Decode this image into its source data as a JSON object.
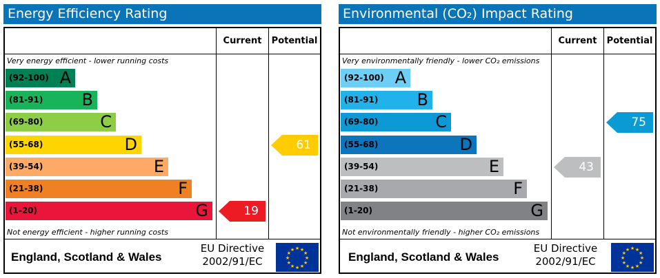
{
  "energy": {
    "title": "Energy Efficiency Rating",
    "col_current": "Current",
    "col_potential": "Potential",
    "top_note": "Very energy efficient - lower running costs",
    "bottom_note": "Not energy efficient - higher running costs",
    "region": "England, Scotland & Wales",
    "directive_line1": "EU Directive",
    "directive_line2": "2002/91/EC",
    "current": 19,
    "potential": 61,
    "current_color": "#ed1c24",
    "potential_color": "#ffcc00",
    "header_color": "#0a74b8"
  },
  "environmental": {
    "title": "Environmental (CO₂) Impact Rating",
    "col_current": "Current",
    "col_potential": "Potential",
    "top_note": "Very environmentally friendly - lower CO₂ emissions",
    "bottom_note": "Not environmentally friendly - higher CO₂ emissions",
    "region": "England, Scotland & Wales",
    "directive_line1": "EU Directive",
    "directive_line2": "2002/91/EC",
    "current": 43,
    "potential": 75,
    "current_color": "#bcbec0",
    "potential_color": "#0a9bd5",
    "header_color": "#0a74b8"
  },
  "chart_data": [
    {
      "type": "bar",
      "title": "Energy Efficiency Rating",
      "categories": [
        "(92-100) A",
        "(81-91) B",
        "(69-80) C",
        "(55-68) D",
        "(39-54) E",
        "(21-38) F",
        "(1-20) G"
      ],
      "bands": [
        {
          "range": "(92-100)",
          "letter": "A",
          "color": "#008054"
        },
        {
          "range": "(81-91)",
          "letter": "B",
          "color": "#19b459"
        },
        {
          "range": "(69-80)",
          "letter": "C",
          "color": "#8dce46"
        },
        {
          "range": "(55-68)",
          "letter": "D",
          "color": "#ffd500"
        },
        {
          "range": "(39-54)",
          "letter": "E",
          "color": "#fcaa65"
        },
        {
          "range": "(21-38)",
          "letter": "F",
          "color": "#ef8023"
        },
        {
          "range": "(1-20)",
          "letter": "G",
          "color": "#e9153b"
        }
      ],
      "current": 19,
      "potential": 61
    },
    {
      "type": "bar",
      "title": "Environmental (CO₂) Impact Rating",
      "categories": [
        "(92-100) A",
        "(81-91) B",
        "(69-80) C",
        "(55-68) D",
        "(39-54) E",
        "(21-38) F",
        "(1-20) G"
      ],
      "bands": [
        {
          "range": "(92-100)",
          "letter": "A",
          "color": "#6ecff6"
        },
        {
          "range": "(81-91)",
          "letter": "B",
          "color": "#21b1eb"
        },
        {
          "range": "(69-80)",
          "letter": "C",
          "color": "#0d99d6"
        },
        {
          "range": "(55-68)",
          "letter": "D",
          "color": "#0c75bb"
        },
        {
          "range": "(39-54)",
          "letter": "E",
          "color": "#bcbec0"
        },
        {
          "range": "(21-38)",
          "letter": "F",
          "color": "#a7a9ac"
        },
        {
          "range": "(1-20)",
          "letter": "G",
          "color": "#808285"
        }
      ],
      "current": 43,
      "potential": 75
    }
  ]
}
